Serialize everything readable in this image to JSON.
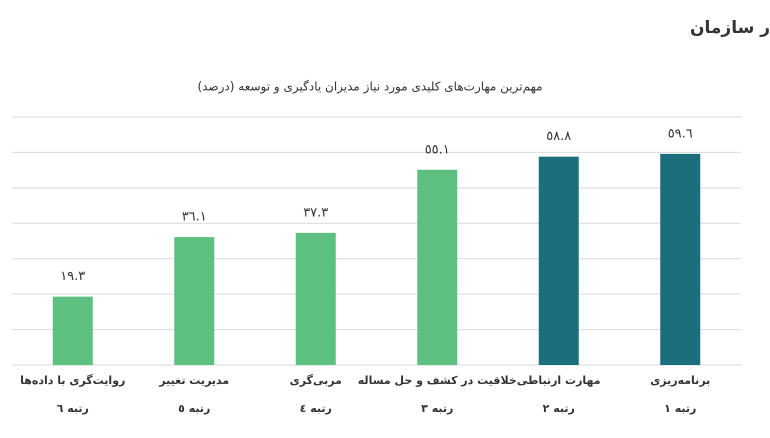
{
  "chart_data": {
    "type": "bar",
    "title": "مهارت‌های کلیدی مورد نیاز مدیران یادگیری و توسعه در سازمان",
    "subtitle": "مهم‌ترین مهارت‌های کلیدی مورد نیاز مدیران یادگیری و توسعه (درصد)",
    "categories": [
      "روایت‌گری با داده‌ها",
      "مدیریت تغییر",
      "مربی‌گری",
      "خلاقیت در کشف و حل مساله",
      "مهارت ارتباطی",
      "برنامه‌ریزی"
    ],
    "ranks": [
      "رتبه ٦",
      "رتبه ٥",
      "رتبه ٤",
      "رتبه ٣",
      "رتبه ٢",
      "رتبه ١"
    ],
    "values": [
      19.3,
      36.1,
      37.3,
      55.1,
      58.8,
      59.6
    ],
    "value_labels": [
      "١٩.٣",
      "٣٦.١",
      "٣٧.٣",
      "٥٥.١",
      "٥٨.٨",
      "٥٩.٦"
    ],
    "colors": [
      "#5ec080",
      "#5ec080",
      "#5ec080",
      "#5ec080",
      "#1b6f7c",
      "#1b6f7c"
    ],
    "ylim": [
      0,
      70
    ],
    "yticks": [
      0,
      10,
      20,
      30,
      40,
      50,
      60,
      70
    ],
    "grid": true
  }
}
